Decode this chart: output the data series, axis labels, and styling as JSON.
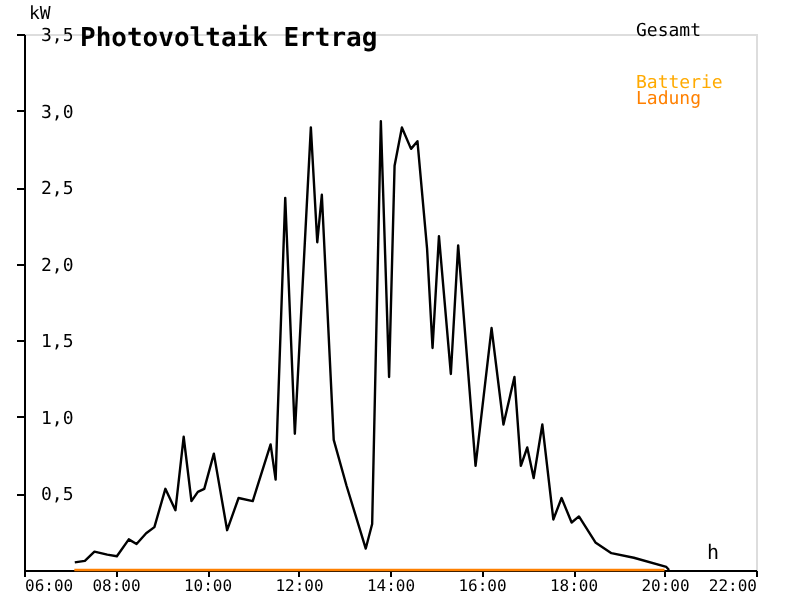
{
  "chart_data": {
    "type": "line",
    "title": "Photovoltaik Ertrag",
    "xlabel": "h",
    "ylabel": "kW",
    "xlim": [
      6,
      22
    ],
    "xticks": [
      {
        "value": 6,
        "label": "06:00"
      },
      {
        "value": 8,
        "label": "08:00"
      },
      {
        "value": 10,
        "label": "10:00"
      },
      {
        "value": 12,
        "label": "12:00"
      },
      {
        "value": 14,
        "label": "14:00"
      },
      {
        "value": 16,
        "label": "16:00"
      },
      {
        "value": 18,
        "label": "18:00"
      },
      {
        "value": 20,
        "label": "20:00"
      },
      {
        "value": 22,
        "label": "22:00"
      }
    ],
    "ylim": [
      0,
      3.5
    ],
    "yticks": [
      {
        "value": 0.5,
        "label": "0,5"
      },
      {
        "value": 1.0,
        "label": "1,0"
      },
      {
        "value": 1.5,
        "label": "1,5"
      },
      {
        "value": 2.0,
        "label": "2,0"
      },
      {
        "value": 2.5,
        "label": "2,5"
      },
      {
        "value": 3.0,
        "label": "3,0"
      },
      {
        "value": 3.5,
        "label": "3,5"
      }
    ],
    "grid": false,
    "legend": "top right",
    "marker": "none",
    "line_style": "solid",
    "series": [
      {
        "name": "Gesamt",
        "color": "#000000",
        "x": [
          7.11,
          7.33,
          7.54,
          7.82,
          8.03,
          8.29,
          8.46,
          8.67,
          8.85,
          9.09,
          9.31,
          9.49,
          9.66,
          9.8,
          9.94,
          10.15,
          10.44,
          10.69,
          11.0,
          11.39,
          11.5,
          11.54,
          11.71,
          11.92,
          12.27,
          12.41,
          12.51,
          12.77,
          13.05,
          13.47,
          13.61,
          13.8,
          13.98,
          14.1,
          14.26,
          14.46,
          14.6,
          14.81,
          14.93,
          15.07,
          15.33,
          15.49,
          15.87,
          16.22,
          16.48,
          16.72,
          16.86,
          17.0,
          17.14,
          17.33,
          17.57,
          17.75,
          17.97,
          18.13,
          18.49,
          18.84,
          19.33,
          20.04,
          20.1
        ],
        "values": [
          0.05,
          0.06,
          0.12,
          0.1,
          0.09,
          0.2,
          0.17,
          0.24,
          0.28,
          0.53,
          0.39,
          0.87,
          0.45,
          0.51,
          0.53,
          0.76,
          0.26,
          0.47,
          0.45,
          0.82,
          0.59,
          0.97,
          2.43,
          0.89,
          2.89,
          2.14,
          2.45,
          0.85,
          0.55,
          0.14,
          0.3,
          2.93,
          1.26,
          2.64,
          2.89,
          2.75,
          2.8,
          2.1,
          1.45,
          2.18,
          1.28,
          2.12,
          0.68,
          1.58,
          0.95,
          1.26,
          0.68,
          0.8,
          0.6,
          0.95,
          0.33,
          0.47,
          0.31,
          0.35,
          0.18,
          0.11,
          0.08,
          0.02,
          0.0
        ]
      },
      {
        "name": "Batterie",
        "color": "#ffaa00"
      },
      {
        "name": "Ladung",
        "color": "#ff8000",
        "x": [
          7.1,
          20.0
        ],
        "values": [
          0,
          0
        ]
      }
    ]
  }
}
